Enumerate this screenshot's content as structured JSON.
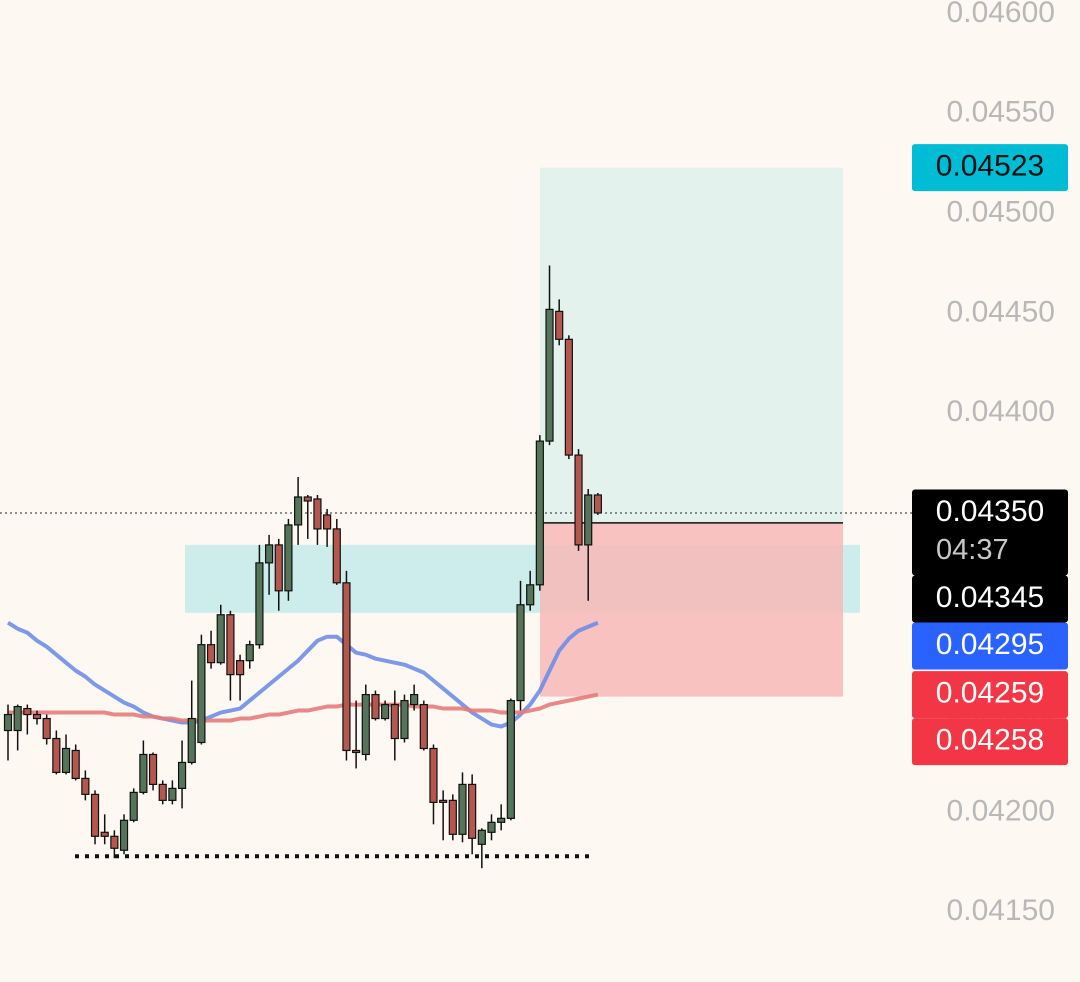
{
  "chart_data": {
    "type": "candlestick",
    "ylim": [
      0.04115,
      0.04607
    ],
    "yticks": [
      {
        "value": 0.046,
        "label": "0.04600"
      },
      {
        "value": 0.0455,
        "label": "0.04550"
      },
      {
        "value": 0.045,
        "label": "0.04500"
      },
      {
        "value": 0.0445,
        "label": "0.04450"
      },
      {
        "value": 0.044,
        "label": "0.04400"
      },
      {
        "value": 0.0435,
        "label": "0.04350"
      },
      {
        "value": 0.043,
        "label": "0.04300"
      },
      {
        "value": 0.0425,
        "label": "0.04250"
      },
      {
        "value": 0.042,
        "label": "0.04200"
      },
      {
        "value": 0.0415,
        "label": "0.04150"
      }
    ],
    "up_color": "#56745a",
    "down_color": "#b3574f",
    "open": [
      0.04241,
      0.04241,
      0.04252,
      0.04249,
      0.04247,
      0.04237,
      0.0422,
      0.04231,
      0.04217,
      0.04209,
      0.0419,
      0.04188,
      0.04181,
      0.04196,
      0.0421,
      0.04229,
      0.04214,
      0.04206,
      0.04212,
      0.04225,
      0.04235,
      0.04284,
      0.04275,
      0.04299,
      0.04276,
      0.04276,
      0.04284,
      0.04325,
      0.04334,
      0.04311,
      0.04344,
      0.04358,
      0.04357,
      0.04349,
      0.04342,
      0.04315,
      0.04231,
      0.04229,
      0.04259,
      0.04247,
      0.04254,
      0.04237,
      0.04254,
      0.04254,
      0.04232,
      0.04206,
      0.04206,
      0.04189,
      0.04214,
      0.04184,
      0.0419,
      0.04195,
      0.04197,
      0.04256,
      0.04304,
      0.04314,
      0.04386,
      0.04451,
      0.04437,
      0.04379,
      0.04334,
      0.04359
    ],
    "high": [
      0.04254,
      0.04254,
      0.04254,
      0.04251,
      0.04249,
      0.04241,
      0.04239,
      0.04234,
      0.04221,
      0.04211,
      0.04199,
      0.04191,
      0.04199,
      0.04212,
      0.04236,
      0.0423,
      0.04216,
      0.04216,
      0.04236,
      0.04266,
      0.04289,
      0.04291,
      0.04304,
      0.04301,
      0.04279,
      0.04286,
      0.04334,
      0.04339,
      0.04337,
      0.04347,
      0.04368,
      0.04359,
      0.04359,
      0.04352,
      0.04347,
      0.04321,
      0.04256,
      0.04264,
      0.04261,
      0.04256,
      0.04261,
      0.04259,
      0.04264,
      0.04256,
      0.04234,
      0.04211,
      0.04209,
      0.0422,
      0.04219,
      0.04192,
      0.04199,
      0.04204,
      0.04257,
      0.04316,
      0.04321,
      0.04389,
      0.04474,
      0.04457,
      0.04439,
      0.04382,
      0.04362,
      0.0436
    ],
    "low": [
      0.04226,
      0.04231,
      0.04239,
      0.04244,
      0.04234,
      0.04219,
      0.04219,
      0.04216,
      0.04206,
      0.04184,
      0.04184,
      0.04177,
      0.04179,
      0.04195,
      0.04209,
      0.04211,
      0.04204,
      0.04204,
      0.04202,
      0.04224,
      0.04234,
      0.04272,
      0.04274,
      0.04256,
      0.04256,
      0.04272,
      0.04282,
      0.04309,
      0.04301,
      0.04306,
      0.04334,
      0.04337,
      0.04334,
      0.04333,
      0.04314,
      0.04226,
      0.04222,
      0.04226,
      0.04246,
      0.04246,
      0.04226,
      0.04235,
      0.04251,
      0.04231,
      0.04194,
      0.04186,
      0.04186,
      0.04185,
      0.04179,
      0.04172,
      0.04186,
      0.04191,
      0.04196,
      0.04251,
      0.04301,
      0.04311,
      0.04384,
      0.04434,
      0.04377,
      0.04331,
      0.04306,
      0.04349
    ],
    "close": [
      0.04249,
      0.04253,
      0.04249,
      0.04247,
      0.04237,
      0.0422,
      0.04232,
      0.04217,
      0.04209,
      0.04188,
      0.04188,
      0.04182,
      0.04196,
      0.0421,
      0.04229,
      0.04214,
      0.04206,
      0.04212,
      0.04225,
      0.04247,
      0.04284,
      0.04275,
      0.04299,
      0.04269,
      0.04269,
      0.04284,
      0.04325,
      0.04334,
      0.04311,
      0.04344,
      0.04358,
      0.04356,
      0.04342,
      0.04342,
      0.04315,
      0.04231,
      0.0423,
      0.04259,
      0.04247,
      0.04254,
      0.04237,
      0.04256,
      0.04259,
      0.04232,
      0.04205,
      0.04205,
      0.04189,
      0.04214,
      0.04187,
      0.04191,
      0.04195,
      0.04197,
      0.04256,
      0.04304,
      0.04314,
      0.04386,
      0.04452,
      0.04437,
      0.04379,
      0.04334,
      0.04359,
      0.0435
    ],
    "moving_averages": [
      {
        "color": "#6f8ee6",
        "values": [
          0.04295,
          0.04292,
          0.0429,
          0.04286,
          0.04283,
          0.04279,
          0.04275,
          0.04271,
          0.04268,
          0.04264,
          0.04261,
          0.04258,
          0.04255,
          0.04253,
          0.0425,
          0.04248,
          0.04247,
          0.04246,
          0.04245,
          0.04245,
          0.04246,
          0.04248,
          0.0425,
          0.04251,
          0.04252,
          0.04256,
          0.0426,
          0.04264,
          0.04268,
          0.04272,
          0.04276,
          0.04281,
          0.04286,
          0.04288,
          0.04288,
          0.04284,
          0.0428,
          0.04279,
          0.04277,
          0.04276,
          0.04275,
          0.04274,
          0.04272,
          0.0427,
          0.04266,
          0.04262,
          0.04258,
          0.04254,
          0.0425,
          0.04247,
          0.04244,
          0.04243,
          0.04245,
          0.04249,
          0.04254,
          0.04261,
          0.04271,
          0.04281,
          0.04287,
          0.04291,
          0.04293,
          0.04295
        ]
      },
      {
        "color": "#e57b7b",
        "values": [
          0.0425,
          0.0425,
          0.0425,
          0.0425,
          0.0425,
          0.0425,
          0.0425,
          0.0425,
          0.0425,
          0.0425,
          0.0425,
          0.04249,
          0.04249,
          0.04249,
          0.04248,
          0.04248,
          0.04247,
          0.04247,
          0.04246,
          0.04246,
          0.04246,
          0.04246,
          0.04246,
          0.04246,
          0.04247,
          0.04247,
          0.04248,
          0.04249,
          0.04249,
          0.0425,
          0.04251,
          0.04251,
          0.04252,
          0.04253,
          0.04253,
          0.04254,
          0.04254,
          0.04254,
          0.04254,
          0.04254,
          0.04254,
          0.04254,
          0.04253,
          0.04253,
          0.04253,
          0.04252,
          0.04252,
          0.04252,
          0.04251,
          0.04251,
          0.04251,
          0.0425,
          0.0425,
          0.0425,
          0.04251,
          0.04252,
          0.04254,
          0.04255,
          0.04256,
          0.04257,
          0.04258,
          0.04259
        ]
      }
    ],
    "zone": {
      "top": 0.04334,
      "bottom": 0.043,
      "color": "#c6ebea"
    },
    "position": {
      "target": 0.04523,
      "entry": 0.04345,
      "stop": 0.04258,
      "target_color": "#dff1ed",
      "stop_color": "#f7b8b8"
    },
    "support": {
      "value": 0.04178,
      "color": "#111111"
    },
    "markers": [
      {
        "value": 0.04523,
        "label": "0.04523",
        "color": "#00bcd4",
        "text_color": "#111111"
      },
      {
        "value": 0.0435,
        "label": "0.04350",
        "color": "#000000",
        "text_color": "#ffffff",
        "countdown": "04:37"
      },
      {
        "value": 0.04345,
        "label": "0.04345",
        "color": "#000000",
        "text_color": "#ffffff"
      },
      {
        "value": 0.04295,
        "label": "0.04295",
        "color": "#2962ff",
        "text_color": "#ffffff"
      },
      {
        "value": 0.04259,
        "label": "0.04259",
        "color": "#f23645",
        "text_color": "#ffffff"
      },
      {
        "value": 0.04258,
        "label": "0.04258",
        "color": "#f23645",
        "text_color": "#ffffff"
      }
    ]
  }
}
